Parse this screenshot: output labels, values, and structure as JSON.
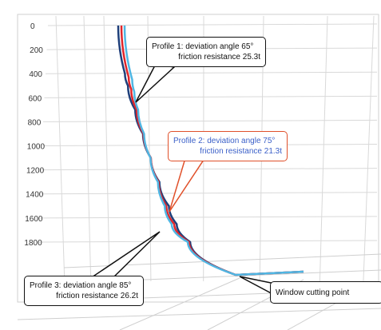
{
  "chart_data": {
    "type": "line",
    "yaxis": {
      "ticks": [
        0,
        200,
        400,
        600,
        800,
        1000,
        1200,
        1400,
        1600,
        1800
      ],
      "tick_labels": [
        "0",
        "200",
        "400",
        "600",
        "800",
        "1000",
        "1200",
        "1400",
        "1600",
        "1800"
      ],
      "range": [
        0,
        1900
      ],
      "inverted": true
    },
    "grid": true,
    "series": [
      {
        "name": "Profile 1",
        "color": "#1f3f7a",
        "depth": [
          0,
          400,
          500,
          700,
          900,
          1100,
          1300,
          1500,
          1650,
          1800,
          1850
        ],
        "offset": [
          0,
          0,
          3,
          12,
          22,
          32,
          44,
          58,
          70,
          95,
          140
        ]
      },
      {
        "name": "Profile 2",
        "color": "#e0252a",
        "depth": [
          0,
          430,
          530,
          700,
          900,
          1100,
          1300,
          1500,
          1650,
          1800,
          1850
        ],
        "offset": [
          0,
          0,
          2,
          8,
          16,
          25,
          35,
          45,
          57,
          85,
          140
        ]
      },
      {
        "name": "Profile 3",
        "color": "#4fb6e3",
        "depth": [
          0,
          450,
          550,
          700,
          900,
          1100,
          1300,
          1500,
          1650,
          1800,
          1850
        ],
        "offset": [
          0,
          0,
          1,
          4,
          10,
          17,
          26,
          34,
          44,
          75,
          140
        ]
      }
    ],
    "annotations": [
      {
        "line1": "Profile 1: deviation angle 65°",
        "line2": "friction resistance 25.3t",
        "border": "#111111",
        "text": "#111111"
      },
      {
        "line1": "Profile 2: deviation angle 75°",
        "line2": "friction resistance 21.3t",
        "border": "#e0502a",
        "text": "#3a5fc8"
      },
      {
        "line1": "Profile 3: deviation angle 85°",
        "line2": "friction resistance 26.2t",
        "border": "#111111",
        "text": "#111111"
      },
      {
        "line1": "Window cutting point",
        "line2": "",
        "border": "#111111",
        "text": "#111111"
      }
    ]
  }
}
